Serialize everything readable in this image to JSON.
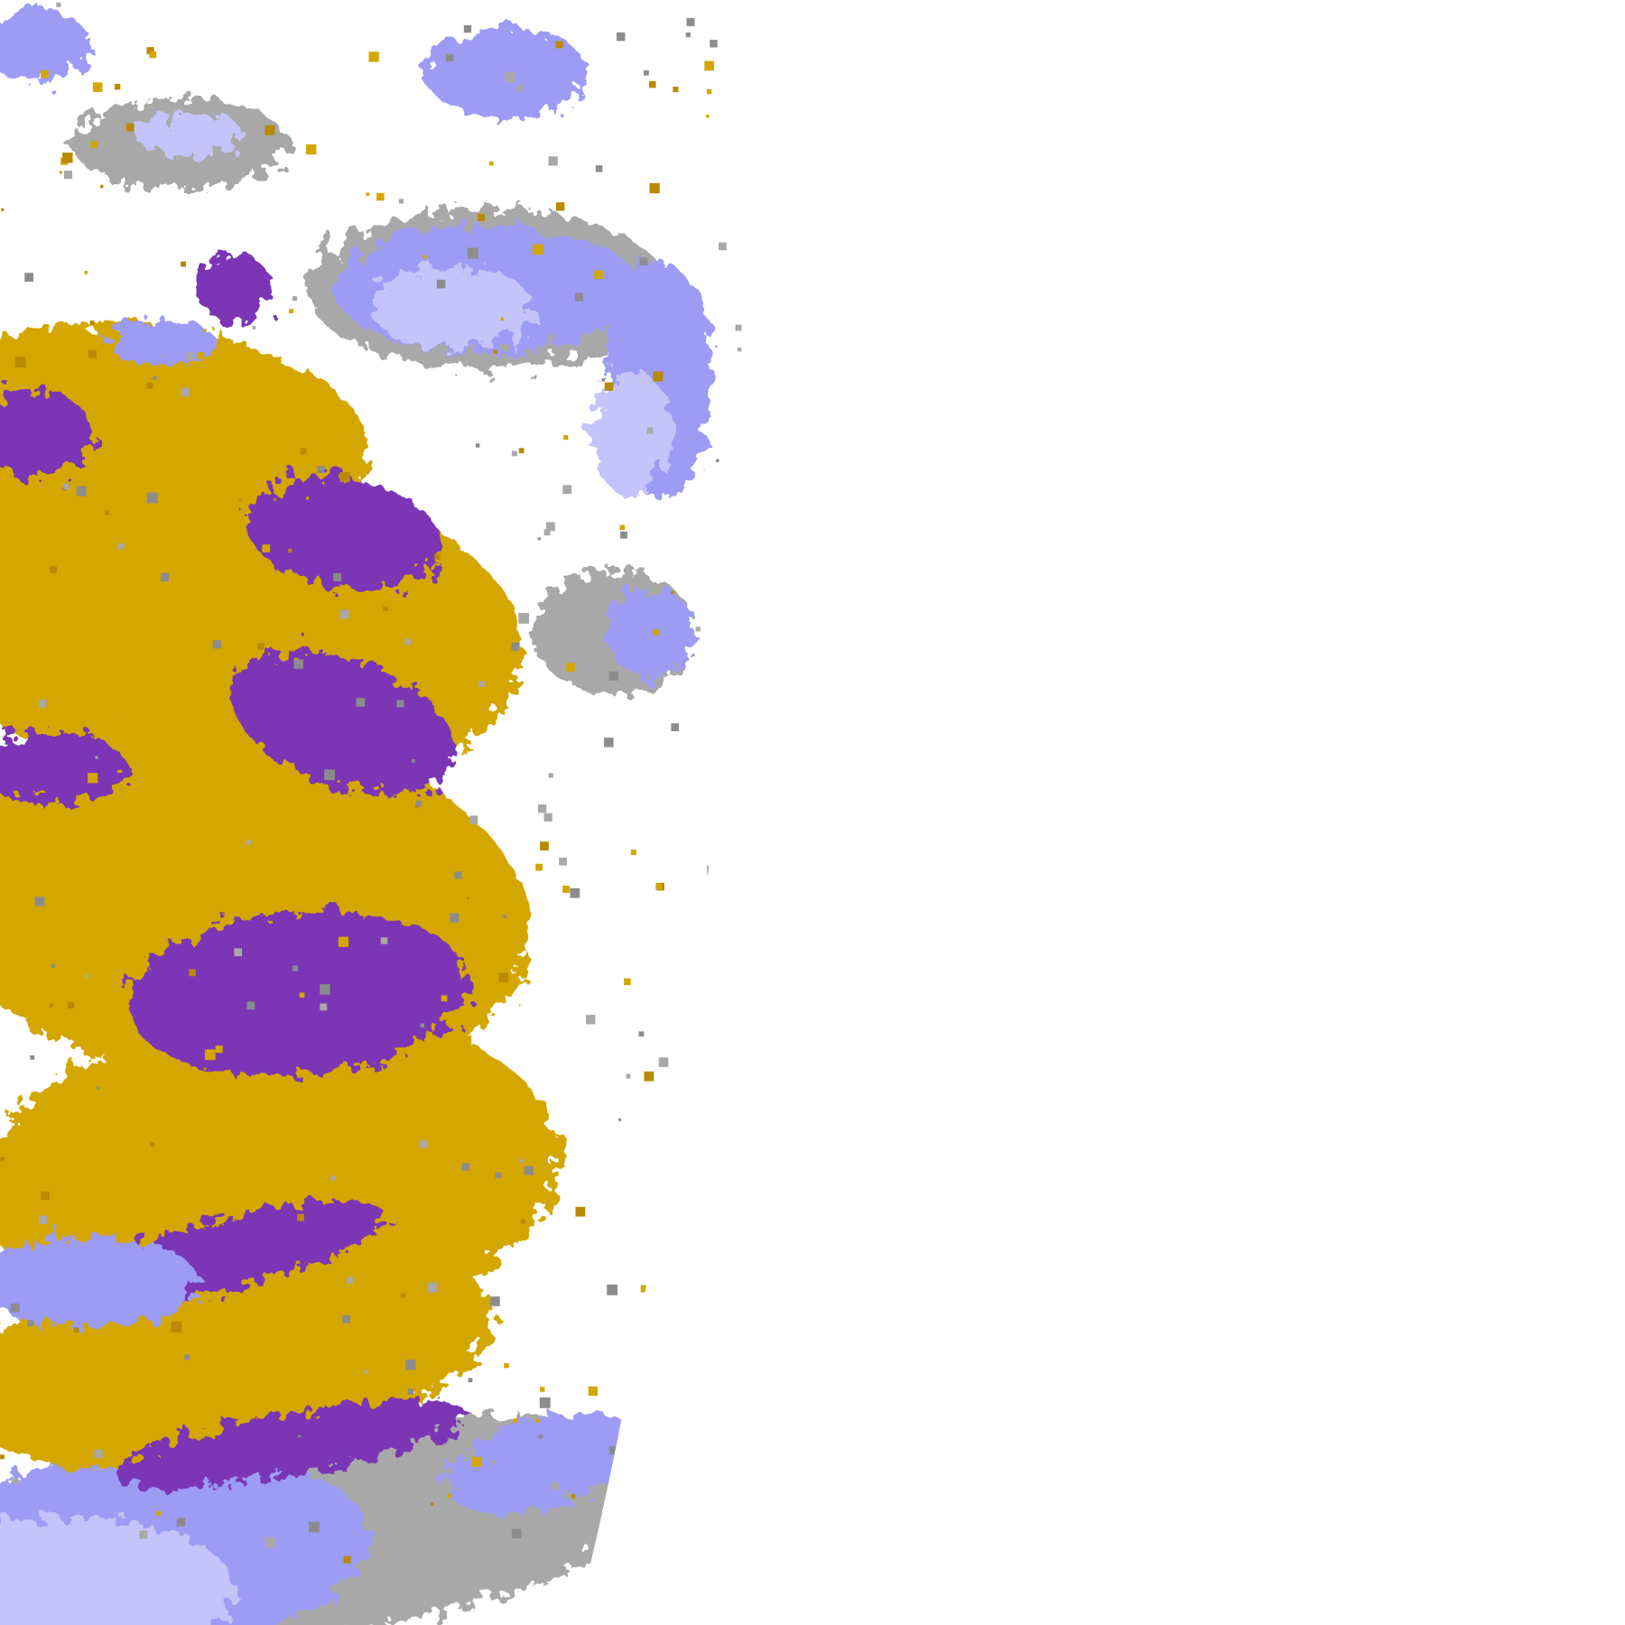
{
  "image": {
    "kind": "satellite cloud-type classification swath",
    "background_color": "#ffffff",
    "palette": {
      "purple": "#7b35b5",
      "gold": "#d4a600",
      "dark_gold": "#b88a00",
      "gray": "#a8a8a8",
      "dark_gray": "#8c8c8c",
      "periwinkle": "#9c9cf5",
      "lavender": "#c4c4fa",
      "magenta": "#d040d0"
    }
  }
}
